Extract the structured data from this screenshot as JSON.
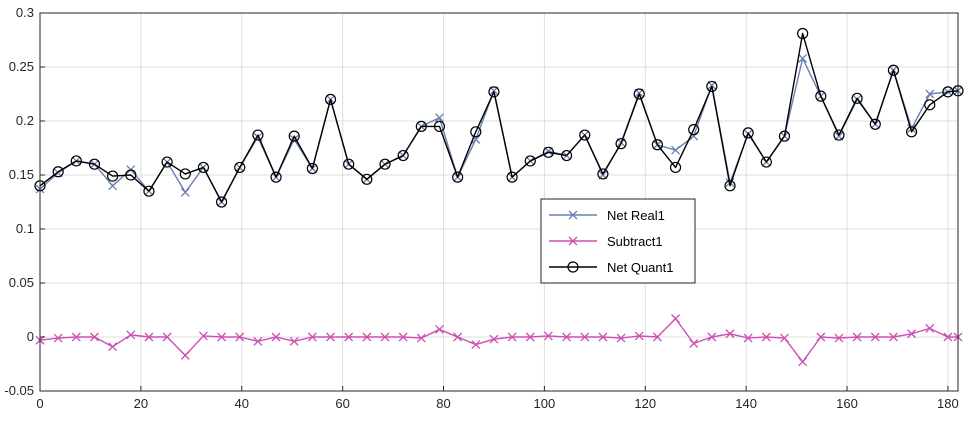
{
  "chart_data": {
    "type": "line",
    "xlim": [
      0,
      182
    ],
    "ylim": [
      -0.05,
      0.3
    ],
    "x_ticks": [
      0,
      20,
      40,
      60,
      80,
      100,
      120,
      140,
      160,
      180
    ],
    "y_ticks": [
      -0.05,
      0,
      0.05,
      0.1,
      0.15,
      0.2,
      0.25,
      0.3
    ],
    "x_tick_labels": [
      "0",
      "20",
      "40",
      "60",
      "80",
      "100",
      "120",
      "140",
      "160",
      "180"
    ],
    "y_tick_labels": [
      "-0.05",
      "0",
      "0.05",
      "0.1",
      "0.15",
      "0.2",
      "0.25",
      "0.3"
    ],
    "grid": true,
    "legend_position": "center-right",
    "x": [
      0,
      3.6,
      7.2,
      10.8,
      14.4,
      18,
      21.6,
      25.2,
      28.8,
      32.4,
      36,
      39.6,
      43.2,
      46.8,
      50.4,
      54,
      57.6,
      61.2,
      64.8,
      68.4,
      72,
      75.6,
      79.2,
      82.8,
      86.4,
      90,
      93.6,
      97.2,
      100.8,
      104.4,
      108,
      111.6,
      115.2,
      118.8,
      122.4,
      126,
      129.6,
      133.2,
      136.8,
      140.4,
      144,
      147.6,
      151.2,
      154.8,
      158.4,
      162,
      165.6,
      169.2,
      172.8,
      176.4,
      180,
      182
    ],
    "series": [
      {
        "name": "Net Real1",
        "color": "#6b7fb0",
        "marker": "x",
        "values": [
          0.137,
          0.152,
          0.163,
          0.16,
          0.14,
          0.155,
          0.135,
          0.162,
          0.134,
          0.157,
          0.125,
          0.157,
          0.185,
          0.148,
          0.183,
          0.156,
          0.22,
          0.16,
          0.146,
          0.16,
          0.168,
          0.195,
          0.203,
          0.148,
          0.183,
          0.228,
          0.148,
          0.163,
          0.172,
          0.168,
          0.187,
          0.15,
          0.18,
          0.226,
          0.178,
          0.173,
          0.186,
          0.233,
          0.143,
          0.188,
          0.162,
          0.186,
          0.258,
          0.223,
          0.186,
          0.22,
          0.197,
          0.247,
          0.193,
          0.225,
          0.227,
          0.228
        ]
      },
      {
        "name": "Subtract1",
        "color": "#cc4fb3",
        "marker": "x",
        "values": [
          -0.003,
          -0.001,
          0.0,
          0.0,
          -0.009,
          0.002,
          0.0,
          0.0,
          -0.017,
          0.001,
          0.0,
          0.0,
          -0.004,
          0.0,
          -0.004,
          0.0,
          0.0,
          0.0,
          0.0,
          0.0,
          0.0,
          -0.001,
          0.007,
          0.0,
          -0.007,
          -0.002,
          0.0,
          0.0,
          0.001,
          0.0,
          0.0,
          0.0,
          -0.001,
          0.001,
          0.0,
          0.017,
          -0.006,
          0.0,
          0.003,
          -0.001,
          0.0,
          -0.001,
          -0.023,
          0.0,
          -0.001,
          0.0,
          0.0,
          0.0,
          0.003,
          0.008,
          0.0,
          0.0
        ]
      },
      {
        "name": "Net Quant1",
        "color": "#000000",
        "marker": "o",
        "values": [
          0.14,
          0.153,
          0.163,
          0.16,
          0.149,
          0.15,
          0.135,
          0.162,
          0.151,
          0.157,
          0.125,
          0.157,
          0.187,
          0.148,
          0.186,
          0.156,
          0.22,
          0.16,
          0.146,
          0.16,
          0.168,
          0.195,
          0.195,
          0.148,
          0.19,
          0.227,
          0.148,
          0.163,
          0.171,
          0.168,
          0.187,
          0.151,
          0.179,
          0.225,
          0.178,
          0.157,
          0.192,
          0.232,
          0.14,
          0.189,
          0.162,
          0.186,
          0.281,
          0.223,
          0.187,
          0.221,
          0.197,
          0.247,
          0.19,
          0.215,
          0.227,
          0.228
        ]
      }
    ]
  }
}
